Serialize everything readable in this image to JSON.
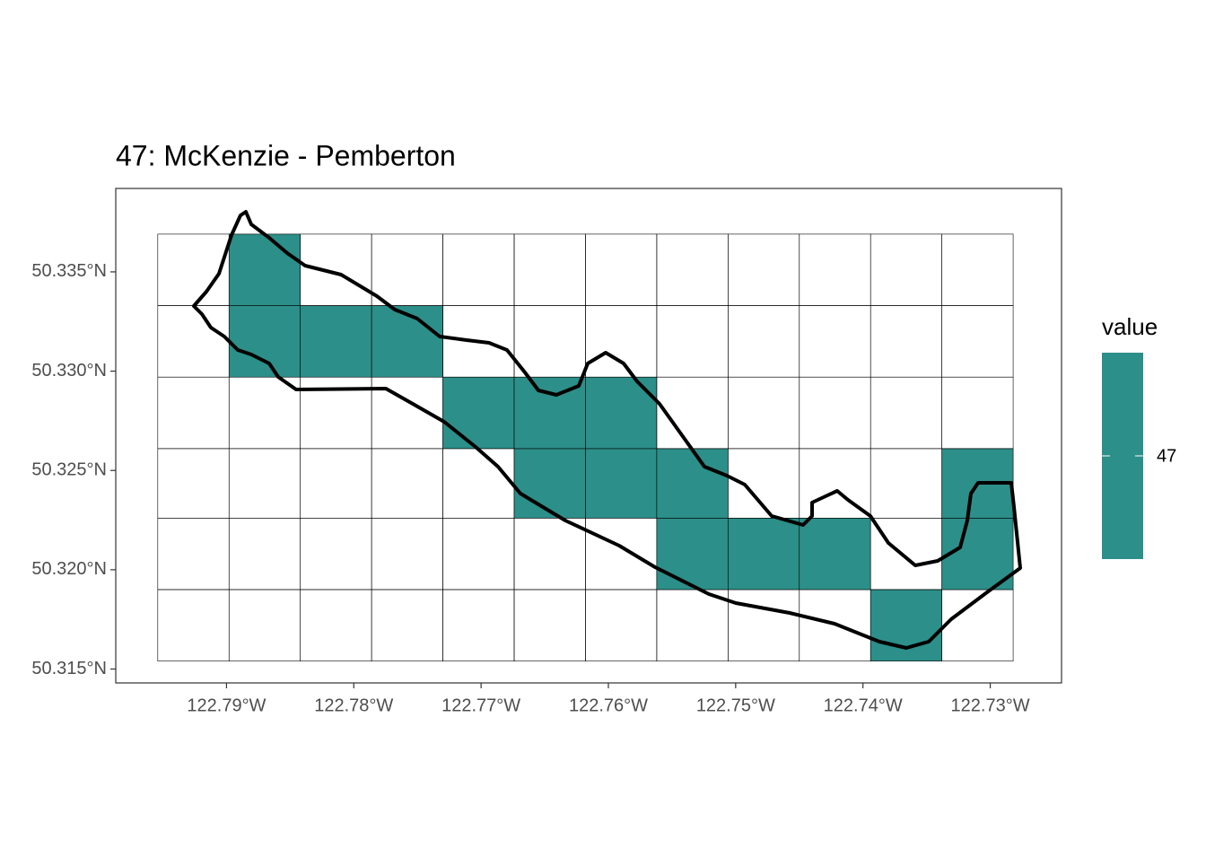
{
  "chart_data": {
    "type": "raster",
    "title": "47: McKenzie - Pemberton",
    "xlim": [
      -122.7987,
      -122.7244
    ],
    "ylim": [
      50.3143,
      50.3392
    ],
    "xticks": [
      {
        "value": -122.79,
        "label": "122.79°W"
      },
      {
        "value": -122.78,
        "label": "122.78°W"
      },
      {
        "value": -122.77,
        "label": "122.77°W"
      },
      {
        "value": -122.76,
        "label": "122.76°W"
      },
      {
        "value": -122.75,
        "label": "122.75°W"
      },
      {
        "value": -122.74,
        "label": "122.74°W"
      },
      {
        "value": -122.73,
        "label": "122.73°W"
      }
    ],
    "yticks": [
      {
        "value": 50.315,
        "label": "50.315°N"
      },
      {
        "value": 50.32,
        "label": "50.320°N"
      },
      {
        "value": 50.325,
        "label": "50.325°N"
      },
      {
        "value": 50.33,
        "label": "50.330°N"
      },
      {
        "value": 50.335,
        "label": "50.335°N"
      }
    ],
    "x_bins": [
      -122.7954,
      -122.7898,
      -122.7842,
      -122.7786,
      -122.773,
      -122.7674,
      -122.7618,
      -122.7562,
      -122.7506,
      -122.745,
      -122.7394,
      -122.7338,
      -122.7282
    ],
    "y_bins": [
      50.3154,
      50.319,
      50.3226,
      50.3261,
      50.3297,
      50.3333,
      50.3369
    ],
    "values": [
      [
        null,
        null,
        null,
        null,
        null,
        null,
        null,
        null,
        null,
        null,
        47,
        null
      ],
      [
        null,
        null,
        null,
        null,
        null,
        null,
        null,
        47,
        47,
        47,
        null,
        47
      ],
      [
        null,
        null,
        null,
        null,
        null,
        47,
        47,
        47,
        null,
        null,
        null,
        47
      ],
      [
        null,
        null,
        null,
        null,
        47,
        47,
        47,
        null,
        null,
        null,
        null,
        null
      ],
      [
        null,
        47,
        47,
        47,
        null,
        null,
        null,
        null,
        null,
        null,
        null,
        null
      ],
      [
        null,
        47,
        null,
        null,
        null,
        null,
        null,
        null,
        null,
        null,
        null,
        null
      ]
    ],
    "color": "#2c8f89",
    "legend": {
      "title": "value",
      "ticks": [
        47
      ]
    }
  }
}
